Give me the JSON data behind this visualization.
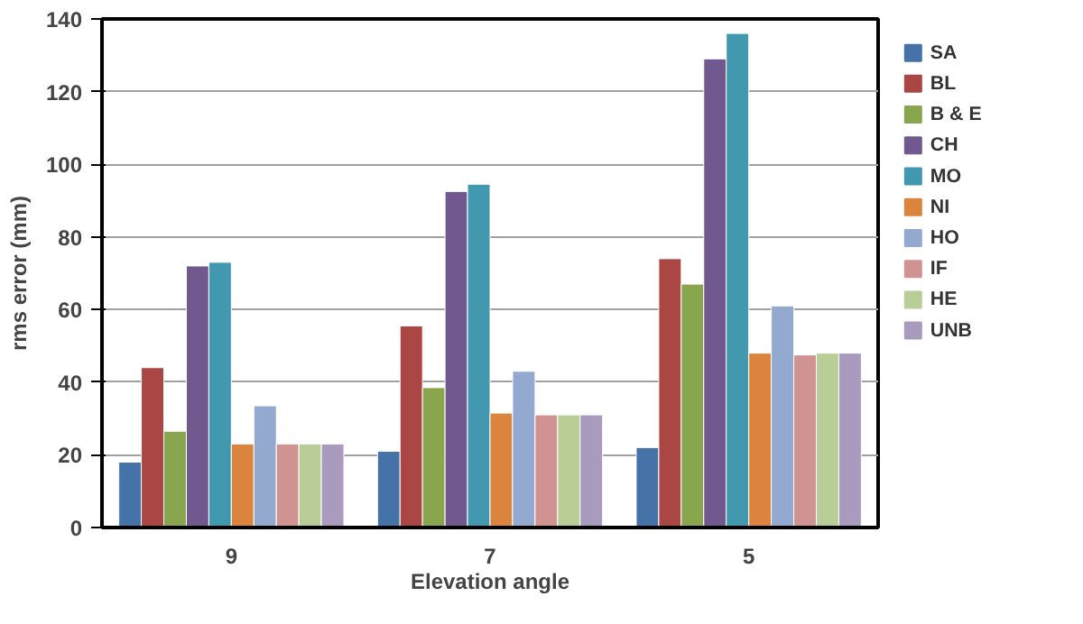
{
  "chart_data": {
    "type": "bar",
    "xlabel": "Elevation angle",
    "ylabel": "rms error (mm)",
    "categories": [
      "9",
      "7",
      "5"
    ],
    "series": [
      {
        "name": "SA",
        "color": "#4572a7",
        "values": [
          18,
          21,
          22
        ]
      },
      {
        "name": "BL",
        "color": "#aa4643",
        "values": [
          44,
          55.5,
          74
        ]
      },
      {
        "name": "B & E",
        "color": "#89a54e",
        "values": [
          26.5,
          38.5,
          67
        ]
      },
      {
        "name": "CH",
        "color": "#71588f",
        "values": [
          72,
          92.5,
          129
        ]
      },
      {
        "name": "MO",
        "color": "#4198af",
        "values": [
          73,
          94.5,
          136
        ]
      },
      {
        "name": "NI",
        "color": "#db843d",
        "values": [
          23,
          31.5,
          48
        ]
      },
      {
        "name": "HO",
        "color": "#93a9cf",
        "values": [
          33.5,
          43,
          61
        ]
      },
      {
        "name": "IF",
        "color": "#d19392",
        "values": [
          23,
          31,
          47.5
        ]
      },
      {
        "name": "HE",
        "color": "#b9cd96",
        "values": [
          23,
          31,
          48
        ]
      },
      {
        "name": "UNB",
        "color": "#a99bbd",
        "values": [
          23,
          31,
          48
        ]
      }
    ],
    "ylim": [
      0,
      140
    ],
    "yticks": [
      0,
      20,
      40,
      60,
      80,
      100,
      120,
      140
    ],
    "grid": "y",
    "legend": "right"
  }
}
